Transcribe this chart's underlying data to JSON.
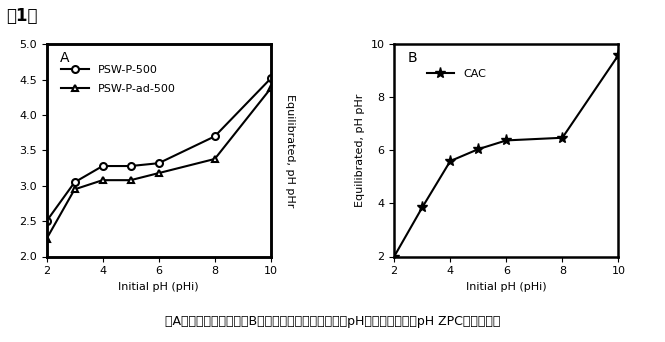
{
  "title": "图1。",
  "panel_A_label": "A",
  "panel_B_label": "B",
  "series1_label": "PSW-P-500",
  "series2_label": "PSW-P-ad-500",
  "series3_label": "CAC",
  "x_label": "Initial pH (pHi)",
  "y_label_A_left": "",
  "y_label_A_right": "Equilibrated, pH pHr",
  "y_label_B": "Equilibrated, pH pHr",
  "caption": "（A）产生的活性炭和（B）商业活性炭从平衡和初始pH的交叉点开始的pH ZPC测定曲线。",
  "series1_x": [
    2,
    3,
    4,
    5,
    6,
    8,
    10
  ],
  "series1_y": [
    2.5,
    3.05,
    3.28,
    3.28,
    3.32,
    3.7,
    4.52
  ],
  "series2_x": [
    2,
    3,
    4,
    5,
    6,
    8,
    10
  ],
  "series2_y": [
    2.25,
    2.95,
    3.08,
    3.08,
    3.18,
    3.38,
    4.38
  ],
  "series3_x": [
    2,
    3,
    4,
    5,
    6,
    8,
    10
  ],
  "series3_y": [
    2.0,
    3.85,
    5.6,
    6.05,
    6.38,
    6.48,
    9.6
  ],
  "xlim": [
    2,
    10
  ],
  "ylim_A": [
    2,
    5
  ],
  "ylim_B": [
    2,
    10
  ],
  "xticks": [
    2,
    4,
    6,
    8,
    10
  ],
  "yticks_A": [
    2,
    2.5,
    3,
    3.5,
    4,
    4.5,
    5
  ],
  "yticks_B": [
    2,
    4,
    6,
    8,
    10
  ],
  "line_color": "#000000",
  "bg_color": "#ffffff",
  "title_fontsize": 12,
  "axis_fontsize": 8,
  "tick_fontsize": 8,
  "legend_fontsize": 8,
  "caption_fontsize": 9
}
